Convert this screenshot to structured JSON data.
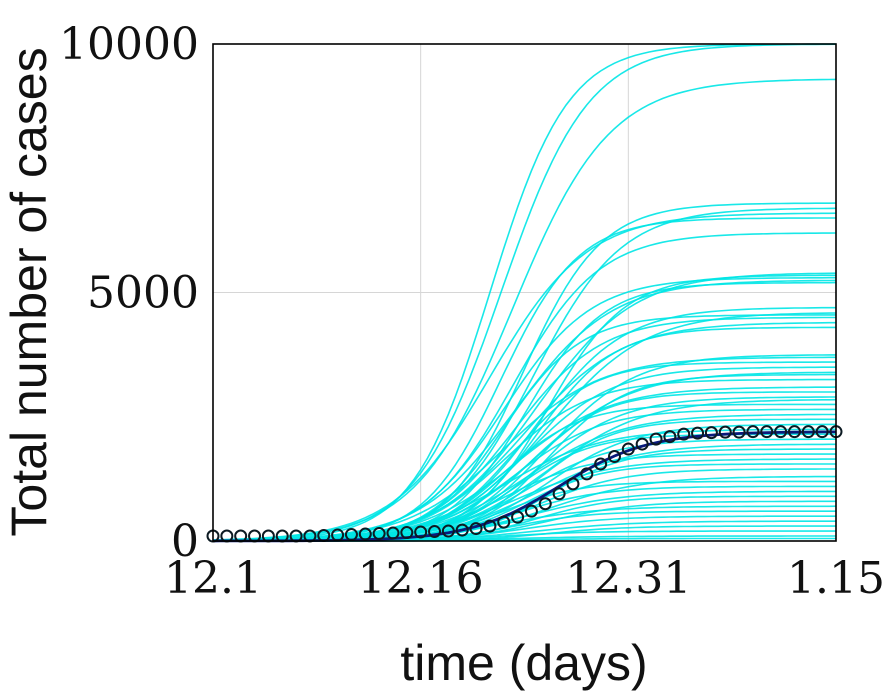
{
  "chart_data": {
    "type": "line",
    "title": "",
    "xlabel": "time (days)",
    "ylabel": "Total number of cases",
    "x_ticks": [
      {
        "label": "12.1",
        "day": 0
      },
      {
        "label": "12.16",
        "day": 15
      },
      {
        "label": "12.31",
        "day": 30
      },
      {
        "label": "1.15",
        "day": 45
      }
    ],
    "xlim": [
      0,
      45
    ],
    "ylim": [
      0,
      10000
    ],
    "y_ticks": [
      0,
      5000,
      10000
    ],
    "grid": true,
    "colors": {
      "simulations": "#00e5e5",
      "fit": "#0a1a7a",
      "observed": "#0c1a22"
    },
    "simulation_finals": [
      10000,
      10000,
      9300,
      6800,
      6700,
      6600,
      6500,
      6200,
      5400,
      5350,
      5300,
      5250,
      5200,
      4700,
      4600,
      4550,
      4500,
      4400,
      4300,
      3750,
      3700,
      3600,
      3500,
      3400,
      3350,
      3250,
      3100,
      3000,
      2900,
      2850,
      2750,
      2650,
      2550,
      2450,
      2350,
      2250,
      2150,
      2050,
      1950,
      1850,
      1750,
      1650,
      1550,
      1450,
      1300,
      1200,
      1100,
      1000,
      900,
      800,
      700,
      600,
      500,
      400,
      300,
      200,
      100,
      50
    ],
    "fit_final": 2200,
    "observed": {
      "x": [
        0,
        1,
        2,
        3,
        4,
        5,
        6,
        7,
        8,
        9,
        10,
        11,
        12,
        13,
        14,
        15,
        16,
        17,
        18,
        19,
        20,
        21,
        22,
        23,
        24,
        25,
        26,
        27,
        28,
        29,
        30,
        31,
        32,
        33,
        34,
        35,
        36,
        37,
        38,
        39,
        40,
        41,
        42,
        43,
        44,
        45
      ],
      "y": [
        100,
        100,
        100,
        100,
        100,
        100,
        100,
        100,
        110,
        120,
        130,
        140,
        150,
        160,
        170,
        180,
        190,
        200,
        220,
        250,
        300,
        380,
        480,
        600,
        750,
        950,
        1150,
        1350,
        1550,
        1700,
        1850,
        1950,
        2050,
        2100,
        2150,
        2170,
        2180,
        2190,
        2190,
        2200,
        2200,
        2200,
        2200,
        2200,
        2200,
        2200
      ]
    }
  }
}
